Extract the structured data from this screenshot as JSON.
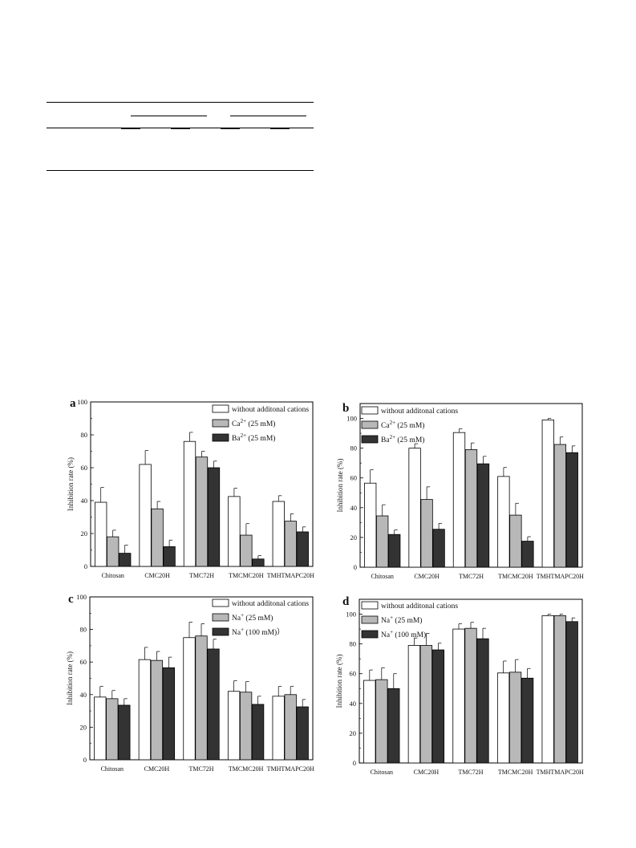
{
  "chart_data": [
    {
      "panel": "a",
      "type": "bar",
      "categories": [
        "Chitosan",
        "CMC20H",
        "TMC72H",
        "TMCMC20H",
        "TMHTMAPC20H"
      ],
      "ylabel": "Inhibition rate (%)",
      "xlabel": "",
      "ylim": [
        0,
        100
      ],
      "yticks": [
        0,
        20,
        40,
        60,
        80,
        100
      ],
      "legend_position": "top-right",
      "series": [
        {
          "name": "without additonal cations",
          "fill": "#ffffff",
          "values": [
            39,
            62,
            76,
            42.5,
            39.5
          ],
          "errors": [
            9,
            8.5,
            5.5,
            5,
            3.5
          ]
        },
        {
          "name": "Ca2+ (25 mM)",
          "fill": "#b8b8b8",
          "values": [
            18,
            35,
            66.5,
            19,
            27.5
          ],
          "errors": [
            4,
            4.5,
            3.5,
            7,
            4.5
          ]
        },
        {
          "name": "Ba2+ (25 mM)",
          "fill": "#333333",
          "values": [
            8,
            12,
            60,
            4.5,
            21
          ],
          "errors": [
            5,
            4,
            4,
            2,
            3
          ]
        }
      ]
    },
    {
      "panel": "b",
      "type": "bar",
      "categories": [
        "Chitosan",
        "CMC20H",
        "TMC72H",
        "TMCMC20H",
        "TMHTMAPC20H"
      ],
      "ylabel": "Inhibition rate (%)",
      "xlabel": "",
      "ylim": [
        0,
        110
      ],
      "yticks": [
        0,
        20,
        40,
        60,
        80,
        100
      ],
      "legend_position": "top-left",
      "series": [
        {
          "name": "without additonal cations",
          "fill": "#ffffff",
          "values": [
            56.5,
            80,
            90.5,
            61,
            99
          ],
          "errors": [
            9,
            3,
            2.5,
            6,
            1
          ]
        },
        {
          "name": "Ca2+ (25 mM)",
          "fill": "#b8b8b8",
          "values": [
            34.5,
            45.5,
            79,
            35,
            82.5
          ],
          "errors": [
            7.5,
            8.5,
            4.5,
            8,
            5
          ]
        },
        {
          "name": "Ba2+ (25 mM)",
          "fill": "#333333",
          "values": [
            22,
            25.5,
            69.5,
            17.5,
            77
          ],
          "errors": [
            3,
            4,
            5,
            3,
            4.5
          ]
        }
      ]
    },
    {
      "panel": "c",
      "type": "bar",
      "categories": [
        "Chitosan",
        "CMC20H",
        "TMC72H",
        "TMCMC20H",
        "TMHTMAPC20H"
      ],
      "ylabel": "Inhibition rate (%)",
      "xlabel": "",
      "ylim": [
        0,
        100
      ],
      "yticks": [
        0,
        20,
        40,
        60,
        80,
        100
      ],
      "legend_position": "top-right",
      "series": [
        {
          "name": "without additonal cations",
          "fill": "#ffffff",
          "values": [
            38.5,
            61.5,
            75,
            42,
            39
          ],
          "errors": [
            6.5,
            7.5,
            9.5,
            6.5,
            6
          ]
        },
        {
          "name": "Na+ (25 mM)",
          "fill": "#b8b8b8",
          "values": [
            37.5,
            61,
            76,
            41.5,
            40
          ],
          "errors": [
            5,
            5.5,
            7.5,
            6.5,
            5
          ]
        },
        {
          "name": "Na+ (100 mM)）",
          "fill": "#333333",
          "values": [
            33.5,
            56.5,
            68,
            34,
            32.5
          ],
          "errors": [
            4,
            6.5,
            6,
            5,
            4.5
          ]
        }
      ]
    },
    {
      "panel": "d",
      "type": "bar",
      "categories": [
        "Chitosan",
        "CMC20H",
        "TMC72H",
        "TMCMC20H",
        "TMHTMAPC20H"
      ],
      "ylabel": "Inhibition rate (%)",
      "xlabel": "",
      "ylim": [
        0,
        110
      ],
      "yticks": [
        0,
        20,
        40,
        60,
        80,
        100
      ],
      "legend_position": "top-left",
      "series": [
        {
          "name": "without additonal cations",
          "fill": "#ffffff",
          "values": [
            55.5,
            79,
            90,
            60.5,
            99
          ],
          "errors": [
            7,
            5,
            3.5,
            8,
            1
          ]
        },
        {
          "name": "Na+ (25 mM)",
          "fill": "#b8b8b8",
          "values": [
            56,
            79,
            90.5,
            61,
            99
          ],
          "errors": [
            8,
            8,
            4,
            8.5,
            1
          ]
        },
        {
          "name": "Na+ (100 mM)",
          "fill": "#333333",
          "values": [
            50,
            76,
            83.5,
            57,
            95
          ],
          "errors": [
            10,
            4.5,
            7,
            6.5,
            2.5
          ]
        }
      ]
    }
  ]
}
